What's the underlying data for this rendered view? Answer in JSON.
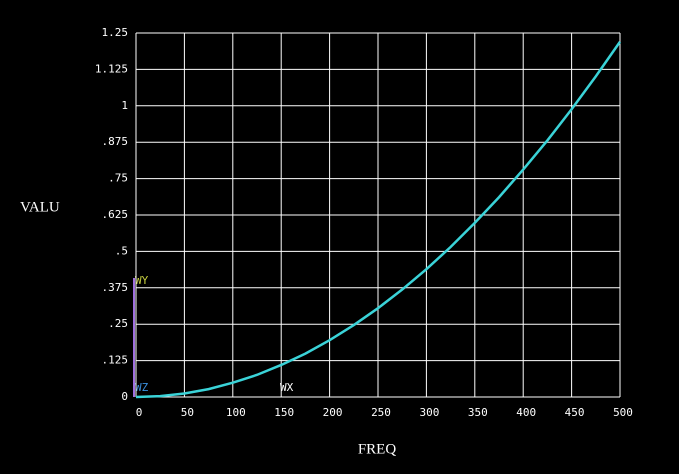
{
  "chart_data": {
    "type": "line",
    "xlabel": "FREQ",
    "ylabel": "VALU",
    "x": [
      0,
      25,
      50,
      75,
      100,
      125,
      150,
      175,
      200,
      225,
      250,
      275,
      300,
      325,
      350,
      375,
      400,
      425,
      450,
      475,
      500
    ],
    "series": [
      {
        "name": null,
        "color": "#3ad3d8",
        "values": [
          0,
          0.003,
          0.012,
          0.027,
          0.049,
          0.076,
          0.11,
          0.149,
          0.195,
          0.247,
          0.305,
          0.369,
          0.439,
          0.515,
          0.598,
          0.686,
          0.781,
          0.881,
          0.988,
          1.101,
          1.22
        ]
      }
    ],
    "xlim": [
      0,
      500
    ],
    "xticks": [
      0,
      50,
      100,
      150,
      200,
      250,
      300,
      350,
      400,
      450,
      500
    ],
    "ylim": [
      0,
      1.25
    ],
    "yticks": [
      0,
      {
        "value": 0.125,
        "label": ".125"
      },
      {
        "value": 0.25,
        "label": ".25"
      },
      {
        "value": 0.375,
        "label": ".375"
      },
      {
        "value": 0.5,
        "label": ".5"
      },
      {
        "value": 0.625,
        "label": ".625"
      },
      {
        "value": 0.75,
        "label": ".75"
      },
      {
        "value": 0.875,
        "label": ".875"
      },
      1,
      1.125,
      1.25
    ],
    "grid": true,
    "triad": {
      "y": "WY",
      "z": "WZ",
      "x": "WX"
    }
  }
}
